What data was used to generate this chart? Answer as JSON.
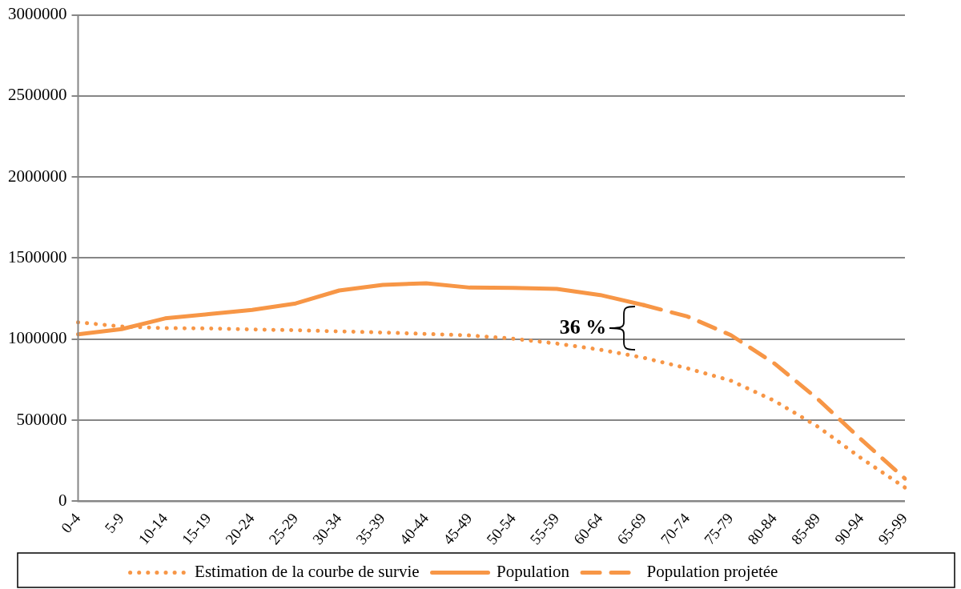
{
  "chart_data": {
    "type": "line",
    "categories": [
      "0-4",
      "5-9",
      "10-14",
      "15-19",
      "20-24",
      "25-29",
      "30-34",
      "35-39",
      "40-44",
      "45-49",
      "50-54",
      "55-59",
      "60-64",
      "65-69",
      "70-74",
      "75-79",
      "80-84",
      "85-89",
      "90-94",
      "95-99"
    ],
    "ylim": [
      0,
      3000000
    ],
    "yticks": [
      0,
      500000,
      1000000,
      1500000,
      2000000,
      2500000,
      3000000
    ],
    "grid": "y",
    "legend": "bottom",
    "marker": "none",
    "series": [
      {
        "name": "Estimation de la courbe de survie",
        "color": "#f79646",
        "line_style": "dotted",
        "values": [
          1104000,
          1078000,
          1068000,
          1066000,
          1060000,
          1055000,
          1048000,
          1041000,
          1032000,
          1023000,
          1003000,
          973000,
          935000,
          885000,
          820000,
          744000,
          620000,
          460000,
          265000,
          85000
        ]
      },
      {
        "name": "Population",
        "color": "#f79646",
        "line_style": "solid",
        "values": [
          1030000,
          1062000,
          1128000,
          1154000,
          1180000,
          1220000,
          1300000,
          1335000,
          1345000,
          1318000,
          1316000,
          1310000,
          1272000,
          1210000,
          null,
          null,
          null,
          null,
          null,
          null
        ]
      },
      {
        "name": "Population projetée",
        "color": "#f79646",
        "line_style": "dashed",
        "values": [
          null,
          null,
          null,
          null,
          null,
          null,
          null,
          null,
          null,
          null,
          null,
          null,
          null,
          1210000,
          1140000,
          1025000,
          850000,
          630000,
          380000,
          140000
        ]
      }
    ],
    "annotations": [
      "36 %"
    ]
  }
}
